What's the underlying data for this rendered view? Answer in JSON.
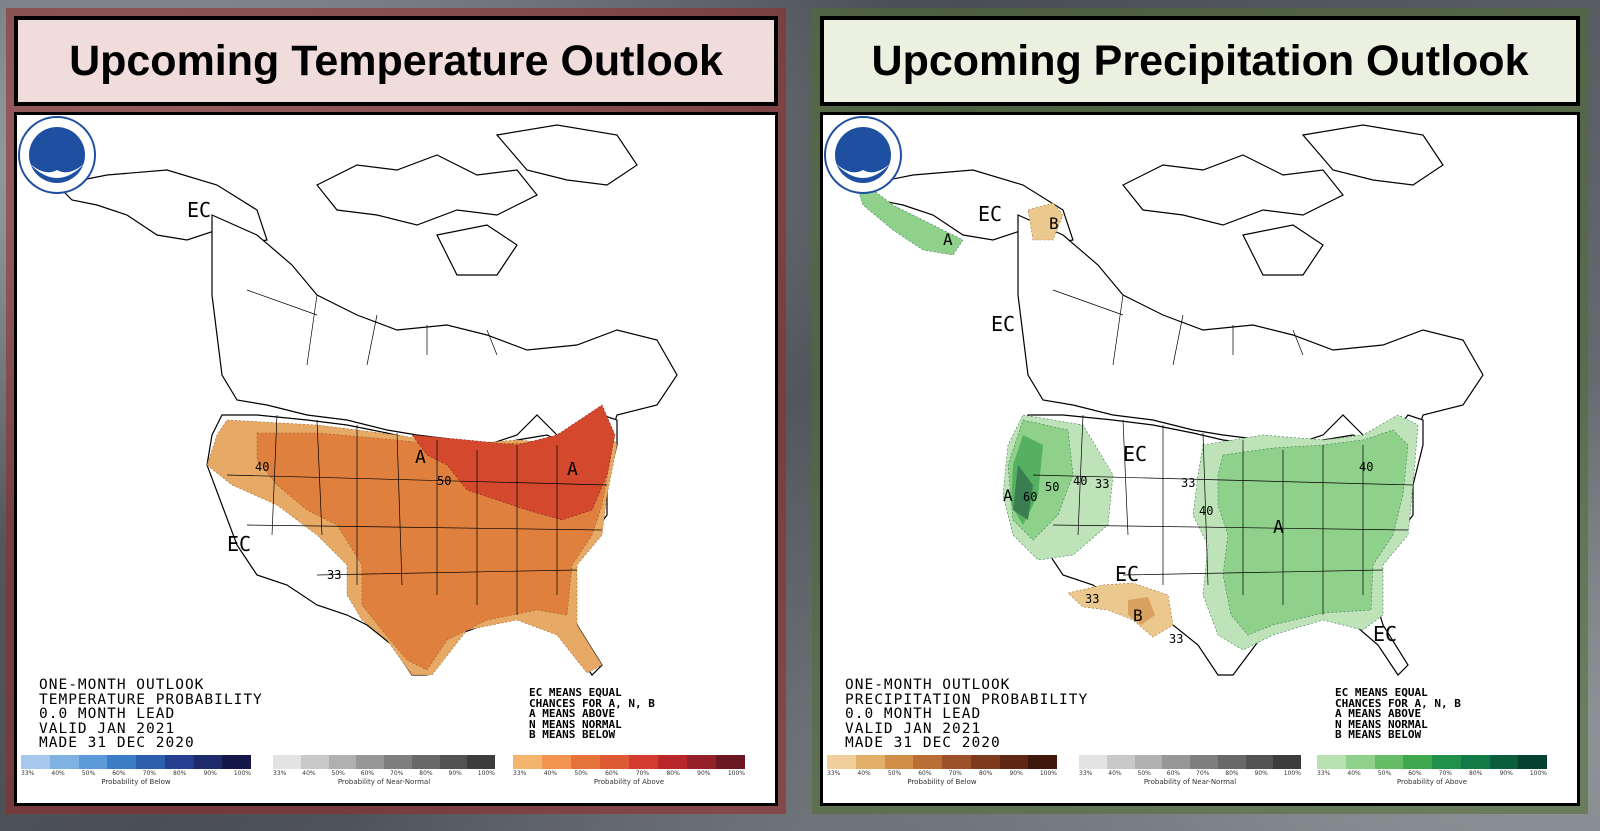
{
  "temperature": {
    "title": "Upcoming Temperature Outlook",
    "caption_lines": [
      "ONE-MONTH OUTLOOK",
      "TEMPERATURE PROBABILITY",
      "0.0 MONTH LEAD",
      "VALID JAN 2021",
      "MADE 31 DEC 2020"
    ],
    "legend_lines": [
      "EC MEANS EQUAL",
      "CHANCES FOR A, N, B",
      "A MEANS ABOVE",
      "N MEANS NORMAL",
      "B MEANS BELOW"
    ],
    "map_labels": {
      "ec_alaska": "EC",
      "ec_west": "EC",
      "a_north": "A",
      "a_east": "A",
      "p40": "40",
      "p50": "50",
      "p33": "33"
    },
    "colorbars": [
      {
        "label": "Probability of Below",
        "colors": [
          "#a6c8ec",
          "#7fb1e3",
          "#5d9ad9",
          "#3a7cc6",
          "#2c5fae",
          "#243f8f",
          "#1d2a6b",
          "#15174a"
        ]
      },
      {
        "label": "Probability of Near-Normal",
        "colors": [
          "#e3e3e3",
          "#c9c9c9",
          "#b0b0b0",
          "#979797",
          "#7f7f7f",
          "#686868",
          "#525252",
          "#3c3c3c"
        ]
      },
      {
        "label": "Probability of Above",
        "colors": [
          "#f3b56e",
          "#f39550",
          "#e6743a",
          "#dd5a33",
          "#d23b2e",
          "#b8282b",
          "#94202a",
          "#6b1822"
        ]
      }
    ],
    "ticks": [
      "33%",
      "40%",
      "50%",
      "60%",
      "70%",
      "80%",
      "90%",
      "100%"
    ],
    "colors": {
      "light": "#e6aa66",
      "mid": "#e0803f",
      "dark": "#d4492e"
    }
  },
  "precipitation": {
    "title": "Upcoming Precipitation Outlook",
    "caption_lines": [
      "ONE-MONTH OUTLOOK",
      "PRECIPITATION PROBABILITY",
      "0.0 MONTH LEAD",
      "VALID JAN 2021",
      "MADE 31 DEC 2020"
    ],
    "legend_lines": [
      "EC MEANS EQUAL",
      "CHANCES FOR A, N, B",
      "A MEANS ABOVE",
      "N MEANS NORMAL",
      "B MEANS BELOW"
    ],
    "map_labels": {
      "ec_alaska": "EC",
      "ec_canada": "EC",
      "ec_plains": "EC",
      "ec_southwest": "EC",
      "ec_florida": "EC",
      "a_alaska": "A",
      "a_west": "A",
      "a_east": "A",
      "b_yukon": "B",
      "b_texas": "B",
      "p40w": "40",
      "p33w": "33",
      "p50w": "50",
      "p60w": "60",
      "p33c": "33",
      "p40c": "40",
      "p40ne": "40",
      "p33sw": "33",
      "p33tx": "33"
    },
    "colorbars": [
      {
        "label": "Probability of Below",
        "colors": [
          "#f0cf9a",
          "#e3b06a",
          "#d08e46",
          "#b86e34",
          "#9c5128",
          "#7f3a1d",
          "#5f2714",
          "#3f180b"
        ]
      },
      {
        "label": "Probability of Near-Normal",
        "colors": [
          "#e3e3e3",
          "#c9c9c9",
          "#b0b0b0",
          "#979797",
          "#7f7f7f",
          "#686868",
          "#525252",
          "#3c3c3c"
        ]
      },
      {
        "label": "Probability of Above",
        "colors": [
          "#b7e2b0",
          "#8fd08a",
          "#66bd66",
          "#3ea84f",
          "#21904a",
          "#117a46",
          "#0b5e3c",
          "#064030"
        ]
      }
    ],
    "ticks": [
      "33%",
      "40%",
      "50%",
      "60%",
      "70%",
      "80%",
      "90%",
      "100%"
    ],
    "colors": {
      "light": "#bfe3b8",
      "mid": "#8fd08a",
      "dark": "#55b060",
      "darker": "#3a7d50",
      "brown_light": "#ebc98e",
      "brown_mid": "#d9a060"
    }
  }
}
